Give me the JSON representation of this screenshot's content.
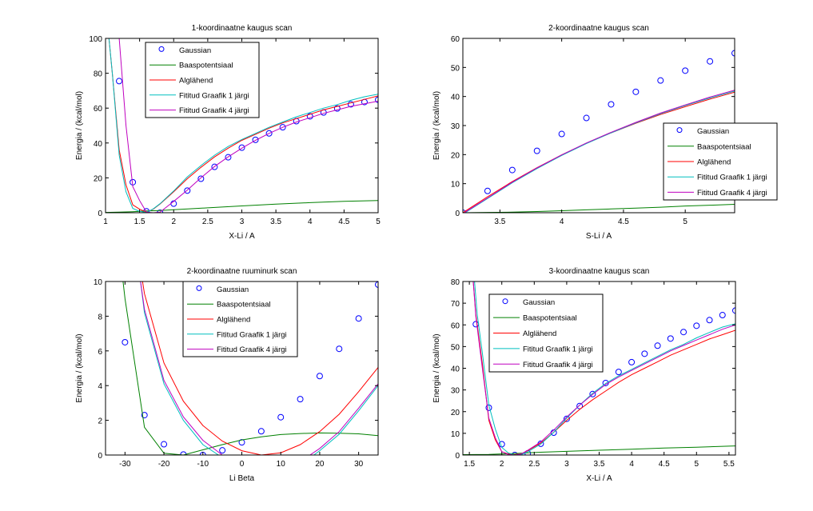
{
  "legend_labels": [
    "Gaussian",
    "Baaspotentsiaal",
    "Alglähend",
    "Fititud Graafik 1 järgi",
    "Fititud Graafik 4 järgi"
  ],
  "series_colors": {
    "Gaussian": "#0000ff",
    "Baaspotentsiaal": "#008000",
    "Alglähend": "#ff0000",
    "Fititud Graafik 1 järgi": "#00bfbf",
    "Fititud Graafik 4 järgi": "#bf00bf"
  },
  "chart_data": [
    {
      "type": "line",
      "title": "1-koordinaatne kaugus scan",
      "xlabel": "X-Li / A",
      "ylabel": "Energia / (kcal/mol)",
      "xlim": [
        1,
        5
      ],
      "ylim": [
        0,
        100
      ],
      "xticks": [
        1,
        1.5,
        2,
        2.5,
        3,
        3.5,
        4,
        4.5,
        5
      ],
      "xtick_labels": [
        "1",
        "1.5",
        "2",
        "2.5",
        "3",
        "3.5",
        "4",
        "4.5",
        "5"
      ],
      "yticks": [
        0,
        20,
        40,
        60,
        80,
        100
      ],
      "ytick_labels": [
        "0",
        "20",
        "40",
        "60",
        "80",
        "100"
      ],
      "grid": false,
      "legend_position": "top-center-left",
      "series": [
        {
          "name": "Gaussian",
          "style": "markers",
          "x": [
            1.2,
            1.4,
            1.6,
            1.8,
            2.0,
            2.2,
            2.4,
            2.6,
            2.8,
            3.0,
            3.2,
            3.4,
            3.6,
            3.8,
            4.0,
            4.2,
            4.4,
            4.6,
            4.8,
            5.0
          ],
          "y": [
            75.5,
            17.5,
            0.8,
            0,
            5.2,
            12.7,
            19.5,
            26.3,
            31.8,
            37.3,
            41.8,
            45.5,
            49.0,
            52.5,
            55.3,
            57.5,
            59.8,
            62.2,
            63.5,
            64.8
          ]
        },
        {
          "name": "Baaspotentsiaal",
          "style": "line",
          "x": [
            1.0,
            1.2,
            1.4,
            1.6,
            1.8,
            2.0,
            2.5,
            3.0,
            3.5,
            4.0,
            4.5,
            5.0
          ],
          "y": [
            0.2,
            0.3,
            0.6,
            1.0,
            1.3,
            1.7,
            2.8,
            3.9,
            4.9,
            5.8,
            6.5,
            7.0
          ]
        },
        {
          "name": "Alglähend",
          "style": "line",
          "x": [
            1.05,
            1.1,
            1.2,
            1.3,
            1.4,
            1.5,
            1.6,
            1.7,
            1.8,
            2.0,
            2.2,
            2.4,
            2.6,
            2.8,
            3.0,
            3.2,
            3.4,
            3.6,
            3.8,
            4.0,
            4.2,
            4.4,
            4.6,
            4.8,
            5.0
          ],
          "y": [
            100,
            80,
            36,
            16,
            4.5,
            2,
            0.3,
            2,
            5,
            12,
            19.5,
            26,
            32,
            37,
            41.5,
            45,
            48.5,
            51.5,
            54,
            56.5,
            59,
            61,
            63,
            65,
            67
          ]
        },
        {
          "name": "Fititud Graafik 1 järgi",
          "style": "line",
          "x": [
            1.05,
            1.1,
            1.2,
            1.3,
            1.4,
            1.5,
            1.6,
            1.7,
            1.8,
            2.0,
            2.2,
            2.4,
            2.6,
            2.8,
            3.0,
            3.2,
            3.4,
            3.6,
            3.8,
            4.0,
            4.2,
            4.4,
            4.6,
            4.8,
            5.0
          ],
          "y": [
            100,
            80,
            33,
            12,
            2.5,
            0.8,
            0.2,
            2.2,
            5.2,
            12.5,
            20.5,
            27,
            33,
            38,
            42,
            45.5,
            49,
            52,
            55,
            57.5,
            60,
            62,
            64.5,
            66.5,
            68
          ]
        },
        {
          "name": "Fititud Graafik 4 järgi",
          "style": "line",
          "x": [
            1.2,
            1.3,
            1.4,
            1.5,
            1.6,
            1.7,
            1.8,
            2.0,
            2.2,
            2.4,
            2.6,
            2.8,
            3.0,
            3.2,
            3.4,
            3.6,
            3.8,
            4.0,
            4.2,
            4.4,
            4.6,
            4.8,
            5.0
          ],
          "y": [
            100,
            50,
            15,
            7,
            0.3,
            0,
            0.3,
            6.5,
            13,
            20,
            26.5,
            32,
            37,
            41.5,
            45.5,
            49,
            52,
            54.5,
            57,
            59,
            61,
            62.5,
            64
          ]
        }
      ]
    },
    {
      "type": "line",
      "title": "2-koordinaatne kaugus scan",
      "xlabel": "S-Li / A",
      "ylabel": "Energia / (kcal/mol)",
      "xlim": [
        3.2,
        5.4
      ],
      "ylim": [
        0,
        60
      ],
      "xticks": [
        3.5,
        4,
        4.5,
        5
      ],
      "xtick_labels": [
        "3.5",
        "4",
        "4.5",
        "5"
      ],
      "yticks": [
        0,
        10,
        20,
        30,
        40,
        50,
        60
      ],
      "ytick_labels": [
        "0",
        "10",
        "20",
        "30",
        "40",
        "50",
        "60"
      ],
      "grid": false,
      "legend_position": "middle-right",
      "series": [
        {
          "name": "Gaussian",
          "style": "markers",
          "x": [
            3.2,
            3.4,
            3.6,
            3.8,
            4.0,
            4.2,
            4.4,
            4.6,
            4.8,
            5.0,
            5.2,
            5.4
          ],
          "y": [
            0,
            7.5,
            14.7,
            21.3,
            27.1,
            32.6,
            37.3,
            41.6,
            45.5,
            48.9,
            52.1,
            54.9
          ]
        },
        {
          "name": "Baaspotentsiaal",
          "style": "line",
          "x": [
            3.2,
            3.4,
            3.6,
            3.8,
            4.0,
            4.2,
            4.4,
            4.6,
            4.8,
            5.0,
            5.2,
            5.4
          ],
          "y": [
            0,
            0.1,
            0.2,
            0.4,
            0.7,
            1.0,
            1.3,
            1.6,
            1.9,
            2.3,
            2.6,
            2.9
          ]
        },
        {
          "name": "Alglähend",
          "style": "line",
          "x": [
            3.2,
            3.4,
            3.6,
            3.8,
            4.0,
            4.2,
            4.4,
            4.6,
            4.8,
            5.0,
            5.2,
            5.4
          ],
          "y": [
            0,
            5.5,
            10.7,
            15.5,
            19.9,
            23.9,
            27.5,
            30.8,
            33.8,
            36.5,
            39.1,
            41.5
          ]
        },
        {
          "name": "Fititud Graafik 1 järgi",
          "style": "line",
          "x": [
            3.2,
            3.4,
            3.6,
            3.8,
            4.0,
            4.2,
            4.4,
            4.6,
            4.8,
            5.0,
            5.2,
            5.4
          ],
          "y": [
            -0.5,
            4.9,
            10.3,
            15.2,
            19.7,
            23.8,
            27.5,
            30.9,
            34.1,
            36.9,
            39.5,
            41.9
          ]
        },
        {
          "name": "Fititud Graafik 4 järgi",
          "style": "line",
          "x": [
            3.2,
            3.4,
            3.6,
            3.8,
            4.0,
            4.2,
            4.4,
            4.6,
            4.8,
            5.0,
            5.2,
            5.4
          ],
          "y": [
            -0.3,
            5.1,
            10.5,
            15.4,
            19.9,
            24.0,
            27.7,
            31.1,
            34.3,
            37.1,
            39.8,
            42.2
          ]
        }
      ]
    },
    {
      "type": "line",
      "title": "2-koordinaatne ruuminurk scan",
      "xlabel": "Li Beta",
      "ylabel": "Energia / (kcal/mol)",
      "xlim": [
        -35,
        35
      ],
      "ylim": [
        0,
        10
      ],
      "xticks": [
        -30,
        -20,
        -10,
        0,
        10,
        20,
        30
      ],
      "xtick_labels": [
        "-30",
        "-20",
        "-10",
        "0",
        "10",
        "20",
        "30"
      ],
      "yticks": [
        0,
        2,
        4,
        6,
        8,
        10
      ],
      "ytick_labels": [
        "0",
        "2",
        "4",
        "6",
        "8",
        "10"
      ],
      "grid": false,
      "legend_position": "top-center",
      "series": [
        {
          "name": "Gaussian",
          "style": "markers",
          "x": [
            -30,
            -25,
            -20,
            -15,
            -10,
            -5,
            0,
            5,
            10,
            15,
            20,
            25,
            30,
            35
          ],
          "y": [
            6.5,
            2.3,
            0.62,
            0.03,
            0,
            0.27,
            0.73,
            1.37,
            2.18,
            3.22,
            4.55,
            6.12,
            7.87,
            9.82
          ]
        },
        {
          "name": "Baaspotentsiaal",
          "style": "line",
          "x": [
            -30.5,
            -30,
            -25,
            -20,
            -15,
            -10,
            -5,
            0,
            5,
            10,
            15,
            20,
            25,
            30,
            35
          ],
          "y": [
            10,
            9.0,
            1.6,
            0.1,
            0.0,
            0.3,
            0.6,
            0.87,
            1.05,
            1.18,
            1.24,
            1.27,
            1.26,
            1.22,
            1.12
          ]
        },
        {
          "name": "Alglähend",
          "style": "line",
          "x": [
            -25.5,
            -25,
            -20,
            -15,
            -10,
            -5,
            0,
            5,
            10,
            15,
            20,
            25,
            30,
            35
          ],
          "y": [
            10,
            9.3,
            5.3,
            3.1,
            1.7,
            0.8,
            0.25,
            0.0,
            0.13,
            0.6,
            1.35,
            2.35,
            3.65,
            5.05
          ]
        },
        {
          "name": "Fititud Graafik 1 järgi",
          "style": "line",
          "x": [
            -26,
            -25,
            -20,
            -15,
            -10,
            -6,
            18.5,
            20,
            25,
            30,
            35
          ],
          "y": [
            10,
            8.2,
            4.1,
            2.0,
            0.6,
            0,
            0,
            0.25,
            1.2,
            2.55,
            4.0
          ]
        },
        {
          "name": "Fititud Graafik 4 järgi",
          "style": "line",
          "x": [
            -26,
            -25,
            -20,
            -15,
            -10,
            -5,
            17.5,
            20,
            25,
            30,
            35
          ],
          "y": [
            10,
            8.4,
            4.3,
            2.2,
            0.85,
            0,
            0,
            0.38,
            1.35,
            2.7,
            4.1
          ]
        }
      ]
    },
    {
      "type": "line",
      "title": "3-koordinaatne kaugus scan",
      "xlabel": "X-Li / A",
      "ylabel": "Energia / (kcal/mol)",
      "xlim": [
        1.4,
        5.6
      ],
      "ylim": [
        0,
        80
      ],
      "xticks": [
        1.5,
        2,
        2.5,
        3,
        3.5,
        4,
        4.5,
        5,
        5.5
      ],
      "xtick_labels": [
        "1.5",
        "2",
        "2.5",
        "3",
        "3.5",
        "4",
        "4.5",
        "5",
        "5.5"
      ],
      "yticks": [
        0,
        10,
        20,
        30,
        40,
        50,
        60,
        70,
        80
      ],
      "ytick_labels": [
        "0",
        "10",
        "20",
        "30",
        "40",
        "50",
        "60",
        "70",
        "80"
      ],
      "grid": false,
      "legend_position": "top-left",
      "series": [
        {
          "name": "Gaussian",
          "style": "markers",
          "x": [
            1.6,
            1.8,
            2.0,
            2.2,
            2.4,
            2.6,
            2.8,
            3.0,
            3.2,
            3.4,
            3.6,
            3.8,
            4.0,
            4.2,
            4.4,
            4.6,
            4.8,
            5.0,
            5.2,
            5.4,
            5.6
          ],
          "y": [
            60.3,
            21.8,
            5.0,
            0,
            0.8,
            5.2,
            10.3,
            16.7,
            22.6,
            28.1,
            33.2,
            38.3,
            42.8,
            46.7,
            50.4,
            53.7,
            56.7,
            59.6,
            62.2,
            64.5,
            66.6
          ]
        },
        {
          "name": "Baaspotentsiaal",
          "style": "line",
          "x": [
            1.4,
            1.8,
            2.0,
            2.2,
            2.4,
            2.6,
            3.0,
            3.5,
            4.0,
            4.5,
            5.0,
            5.5,
            5.6
          ],
          "y": [
            0.2,
            0.3,
            0.5,
            0.7,
            1.0,
            1.3,
            1.7,
            2.2,
            2.7,
            3.2,
            3.6,
            4.1,
            4.2
          ]
        },
        {
          "name": "Alglähend",
          "style": "line",
          "x": [
            1.56,
            1.6,
            1.7,
            1.8,
            1.9,
            2.0,
            2.1,
            2.2,
            2.3,
            2.4,
            2.6,
            2.8,
            3.0,
            3.2,
            3.4,
            3.6,
            3.8,
            4.0,
            4.2,
            4.4,
            4.6,
            4.8,
            5.0,
            5.2,
            5.4,
            5.6
          ],
          "y": [
            80,
            65,
            42,
            16,
            7,
            1.5,
            0.5,
            0.2,
            0.5,
            2,
            5.5,
            10.5,
            16,
            21,
            25.5,
            29.5,
            33.5,
            37,
            40,
            43,
            46,
            48.5,
            51,
            53.5,
            55.5,
            57.5
          ]
        },
        {
          "name": "Fititud Graafik 1 järgi",
          "style": "line",
          "x": [
            1.58,
            1.62,
            1.7,
            1.8,
            1.9,
            2.0,
            2.1,
            2.2,
            2.3,
            2.4,
            2.6,
            2.8,
            3.0,
            3.2,
            3.4,
            3.6,
            3.8,
            4.0,
            4.2,
            4.4,
            4.6,
            4.8,
            5.0,
            5.2,
            5.4,
            5.6
          ],
          "y": [
            80,
            65,
            47,
            23,
            12,
            3.5,
            1.0,
            0.0,
            0.2,
            1.5,
            5,
            10.5,
            17,
            23,
            28.5,
            33,
            36.5,
            39.5,
            42.5,
            45.5,
            48.5,
            51,
            54,
            56.5,
            59,
            60.5
          ]
        },
        {
          "name": "Fititud Graafik 4 järgi",
          "style": "line",
          "x": [
            1.56,
            1.6,
            1.7,
            1.8,
            1.9,
            2.0,
            2.1,
            2.2,
            2.3,
            2.4,
            2.6,
            2.8,
            3.0,
            3.2,
            3.4,
            3.6,
            3.8,
            4.0,
            4.2,
            4.4,
            4.6,
            4.8,
            5.0,
            5.2,
            5.4,
            5.6
          ],
          "y": [
            80,
            64,
            40,
            17,
            8,
            1.5,
            0.3,
            0.0,
            0.5,
            2.2,
            6,
            11.5,
            17.5,
            23,
            28,
            32.5,
            36,
            39,
            42,
            45,
            48,
            50.5,
            53,
            55.5,
            58,
            60
          ]
        }
      ]
    }
  ]
}
